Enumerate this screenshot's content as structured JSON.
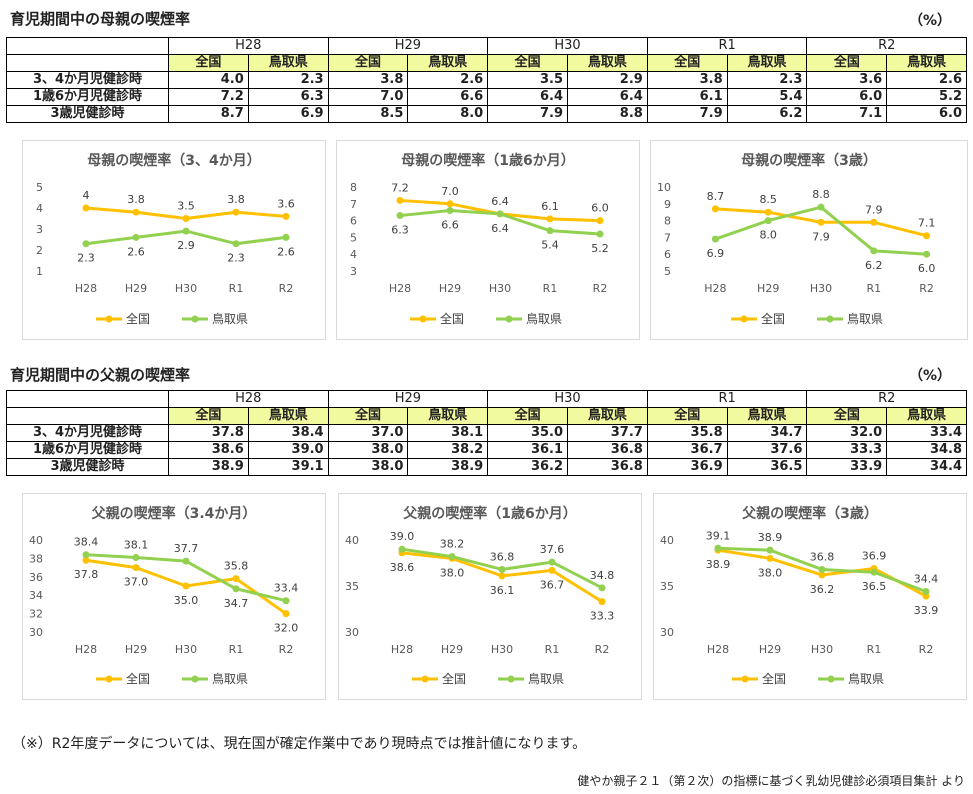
{
  "mother": {
    "title": "育児期間中の母親の喫煙率",
    "unit": "（%）",
    "years": [
      "H28",
      "H29",
      "H30",
      "R1",
      "R2"
    ],
    "sub_national": "全国",
    "sub_tottori": "鳥取県",
    "rows": [
      {
        "label": "3、4か月児健診時",
        "values": [
          "4.0",
          "2.3",
          "3.8",
          "2.6",
          "3.5",
          "2.9",
          "3.8",
          "2.3",
          "3.6",
          "2.6"
        ]
      },
      {
        "label": "1歳6か月児健診時",
        "values": [
          "7.2",
          "6.3",
          "7.0",
          "6.6",
          "6.4",
          "6.4",
          "6.1",
          "5.4",
          "6.0",
          "5.2"
        ]
      },
      {
        "label": "3歳児健診時",
        "values": [
          "8.7",
          "6.9",
          "8.5",
          "8.0",
          "7.9",
          "8.8",
          "7.9",
          "6.2",
          "7.1",
          "6.0"
        ]
      }
    ]
  },
  "father": {
    "title": "育児期間中の父親の喫煙率",
    "unit": "（%）",
    "years": [
      "H28",
      "H29",
      "H30",
      "R1",
      "R2"
    ],
    "sub_national": "全国",
    "sub_tottori": "鳥取県",
    "rows": [
      {
        "label": "3、4か月児健診時",
        "values": [
          "37.8",
          "38.4",
          "37.0",
          "38.1",
          "35.0",
          "37.7",
          "35.8",
          "34.7",
          "32.0",
          "33.4"
        ]
      },
      {
        "label": "1歳6か月児健診時",
        "values": [
          "38.6",
          "39.0",
          "38.0",
          "38.2",
          "36.1",
          "36.8",
          "36.7",
          "37.6",
          "33.3",
          "34.8"
        ]
      },
      {
        "label": "3歳児健診時",
        "values": [
          "38.9",
          "39.1",
          "38.0",
          "38.9",
          "36.2",
          "36.8",
          "36.9",
          "36.5",
          "33.9",
          "34.4"
        ]
      }
    ]
  },
  "colors": {
    "national": "#ffc000",
    "tottori": "#92d050",
    "header_fill": "#f2fa9f"
  },
  "chart_data": [
    {
      "type": "line",
      "title": "母親の喫煙率（3、4か月）",
      "categories": [
        "H28",
        "H29",
        "H30",
        "R1",
        "R2"
      ],
      "ylim": [
        1,
        5
      ],
      "yticks": [
        1,
        2,
        3,
        4,
        5
      ],
      "grid": false,
      "legend": "bottom",
      "series": [
        {
          "name": "全国",
          "values": [
            4,
            3.8,
            3.5,
            3.8,
            3.6
          ],
          "labels": [
            "4",
            "3.8",
            "3.5",
            "3.8",
            "3.6"
          ]
        },
        {
          "name": "鳥取県",
          "values": [
            2.3,
            2.6,
            2.9,
            2.3,
            2.6
          ],
          "labels": [
            "2.3",
            "2.6",
            "2.9",
            "2.3",
            "2.6"
          ]
        }
      ]
    },
    {
      "type": "line",
      "title": "母親の喫煙率（1歳6か月）",
      "categories": [
        "H28",
        "H29",
        "H30",
        "R1",
        "R2"
      ],
      "ylim": [
        3,
        8
      ],
      "yticks": [
        3,
        4,
        5,
        6,
        7,
        8
      ],
      "grid": false,
      "legend": "bottom",
      "series": [
        {
          "name": "全国",
          "values": [
            7.2,
            7.0,
            6.4,
            6.1,
            6.0
          ],
          "labels": [
            "7.2",
            "7.0",
            "6.4",
            "6.1",
            "6.0"
          ]
        },
        {
          "name": "鳥取県",
          "values": [
            6.3,
            6.6,
            6.4,
            5.4,
            5.2
          ],
          "labels": [
            "6.3",
            "6.6",
            "6.4",
            "5.4",
            "5.2"
          ]
        }
      ]
    },
    {
      "type": "line",
      "title": "母親の喫煙率（3歳）",
      "categories": [
        "H28",
        "H29",
        "H30",
        "R1",
        "R2"
      ],
      "ylim": [
        5,
        10
      ],
      "yticks": [
        5,
        6,
        7,
        8,
        9,
        10
      ],
      "grid": false,
      "legend": "bottom",
      "series": [
        {
          "name": "全国",
          "values": [
            8.7,
            8.5,
            7.9,
            7.9,
            7.1
          ],
          "labels": [
            "8.7",
            "8.5",
            "7.9",
            "7.9",
            "7.1"
          ]
        },
        {
          "name": "鳥取県",
          "values": [
            6.9,
            8.0,
            8.8,
            6.2,
            6.0
          ],
          "labels": [
            "6.9",
            "8.0",
            "8.8",
            "6.2",
            "6.0"
          ]
        }
      ]
    },
    {
      "type": "line",
      "title": "父親の喫煙率（3.4か月）",
      "categories": [
        "H28",
        "H29",
        "H30",
        "R1",
        "R2"
      ],
      "ylim": [
        30,
        40
      ],
      "yticks": [
        30,
        32,
        34,
        36,
        38,
        40
      ],
      "grid": false,
      "legend": "bottom",
      "series": [
        {
          "name": "全国",
          "values": [
            37.8,
            37.0,
            35.0,
            35.8,
            32.0
          ],
          "labels": [
            "37.8",
            "37.0",
            "35.0",
            "35.8",
            "32.0"
          ]
        },
        {
          "name": "鳥取県",
          "values": [
            38.4,
            38.1,
            37.7,
            34.7,
            33.4
          ],
          "labels": [
            "38.4",
            "38.1",
            "37.7",
            "34.7",
            "33.4"
          ]
        }
      ]
    },
    {
      "type": "line",
      "title": "父親の喫煙率（1歳6か月）",
      "categories": [
        "H28",
        "H29",
        "H30",
        "R1",
        "R2"
      ],
      "ylim": [
        30,
        40
      ],
      "yticks": [
        30,
        35,
        40
      ],
      "grid": false,
      "legend": "bottom",
      "series": [
        {
          "name": "全国",
          "values": [
            38.6,
            38.0,
            36.1,
            36.7,
            33.3
          ],
          "labels": [
            "38.6",
            "38.0",
            "36.1",
            "36.7",
            "33.3"
          ]
        },
        {
          "name": "鳥取県",
          "values": [
            39.0,
            38.2,
            36.8,
            37.6,
            34.8
          ],
          "labels": [
            "39.0",
            "38.2",
            "36.8",
            "37.6",
            "34.8"
          ]
        }
      ]
    },
    {
      "type": "line",
      "title": "父親の喫煙率（3歳）",
      "categories": [
        "H28",
        "H29",
        "H30",
        "R1",
        "R2"
      ],
      "ylim": [
        30,
        40
      ],
      "yticks": [
        30,
        35,
        40
      ],
      "grid": false,
      "legend": "bottom",
      "series": [
        {
          "name": "全国",
          "values": [
            38.9,
            38.0,
            36.2,
            36.9,
            33.9
          ],
          "labels": [
            "38.9",
            "38.0",
            "36.2",
            "36.9",
            "33.9"
          ]
        },
        {
          "name": "鳥取県",
          "values": [
            39.1,
            38.9,
            36.8,
            36.5,
            34.4
          ],
          "labels": [
            "39.1",
            "38.9",
            "36.8",
            "36.5",
            "34.4"
          ]
        }
      ]
    }
  ],
  "note": "（※）R2年度データについては、現在国が確定作業中であり現時点では推計値になります。",
  "source": "健やか親子２１（第２次）の指標に基づく乳幼児健診必須項目集計 より"
}
